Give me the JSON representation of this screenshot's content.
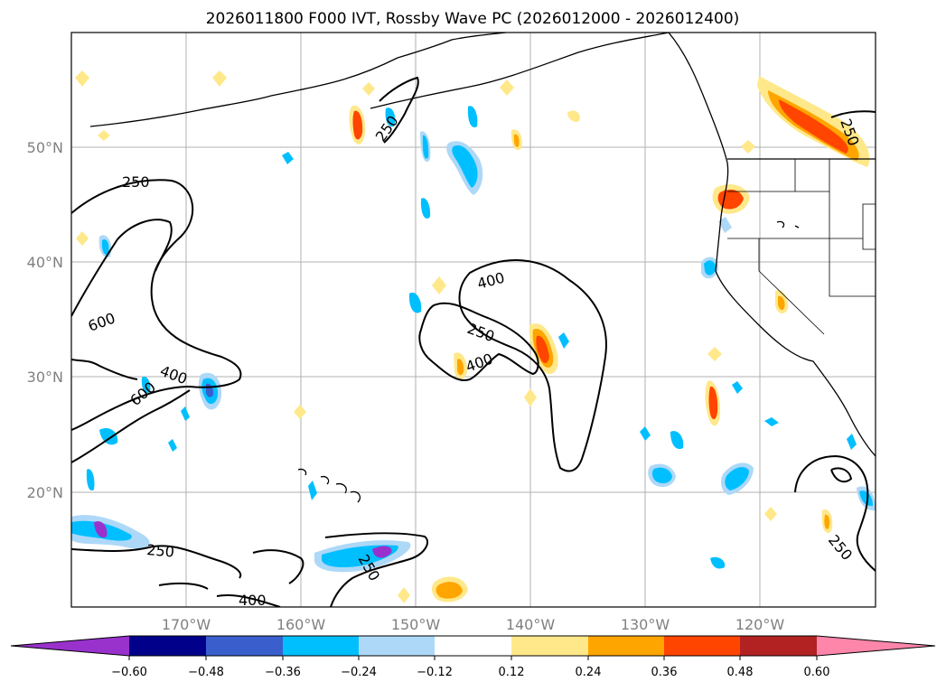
{
  "title": "2026011800 F000 IVT, Rossby Wave PC (2026012000 - 2026012400)",
  "colors": {
    "neg_060": "#9932cc",
    "neg_048": "#00008b",
    "neg_036": "#3a5fcd",
    "neg_024": "#00bfff",
    "neg_012": "#add8f8",
    "zero": "#ffffff",
    "pos_012": "#ffe88a",
    "pos_024": "#ffa500",
    "pos_036": "#ff4500",
    "pos_048": "#b22222",
    "pos_060": "#ff86ab"
  },
  "map": {
    "lon_labels": [
      "170°W",
      "160°W",
      "150°W",
      "140°W",
      "130°W",
      "120°W"
    ],
    "lat_labels": [
      "50°N",
      "40°N",
      "30°N",
      "20°N"
    ]
  },
  "contour_labels": [
    "250",
    "600",
    "400",
    "600",
    "400",
    "250",
    "400",
    "250",
    "250",
    "250",
    "250",
    "400",
    "250"
  ],
  "colorbar": {
    "ticks": [
      "−0.60",
      "−0.48",
      "−0.36",
      "−0.24",
      "−0.12",
      "0.12",
      "0.24",
      "0.36",
      "0.48",
      "0.60"
    ]
  }
}
